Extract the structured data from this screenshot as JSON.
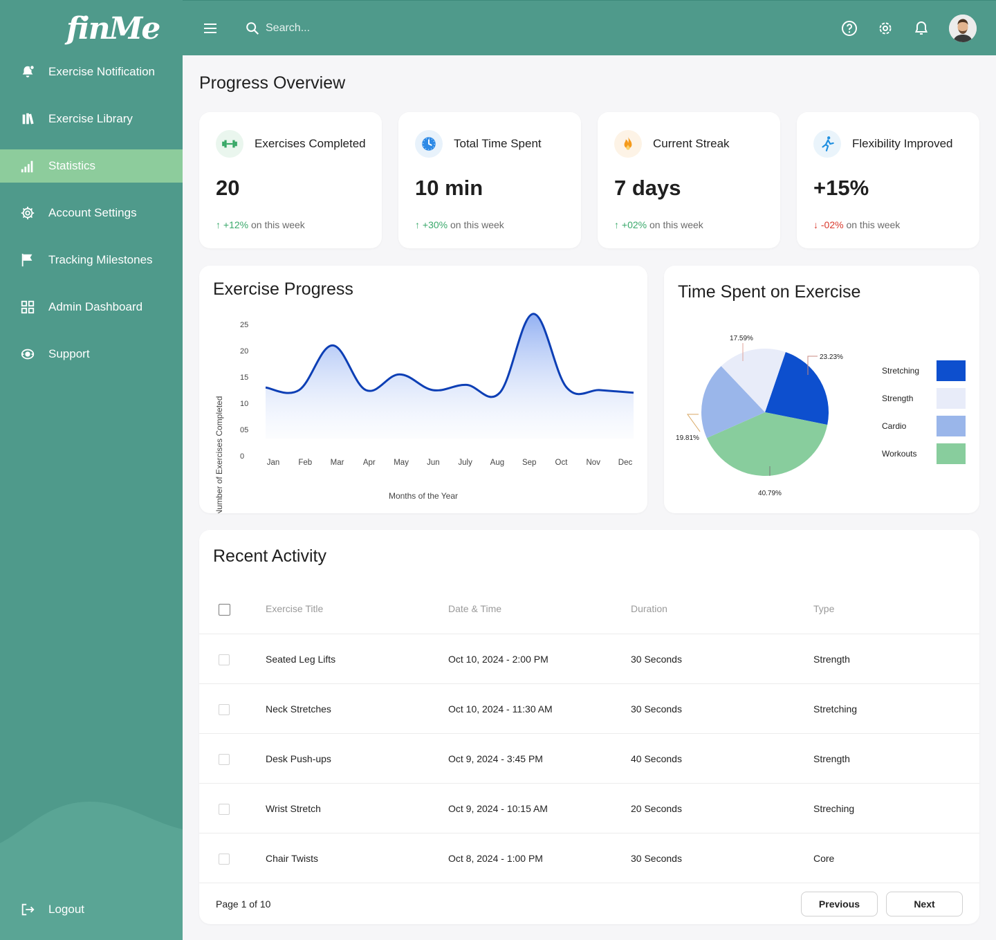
{
  "app": {
    "logo_text": "finMe"
  },
  "sidebar": {
    "items": [
      {
        "label": "Exercise Notification",
        "icon": "bell-alert-icon"
      },
      {
        "label": "Exercise Library",
        "icon": "books-icon"
      },
      {
        "label": "Statistics",
        "icon": "bar-chart-icon",
        "active": true
      },
      {
        "label": "Account Settings",
        "icon": "gear-icon"
      },
      {
        "label": "Tracking Milestones",
        "icon": "flag-icon"
      },
      {
        "label": "Admin Dashboard",
        "icon": "grid-icon"
      },
      {
        "label": "Support",
        "icon": "support-icon"
      }
    ],
    "logout": {
      "label": "Logout",
      "icon": "logout-icon"
    }
  },
  "header": {
    "search": {
      "placeholder": "Search..."
    },
    "icons": [
      "help-icon",
      "gear-icon",
      "bell-icon",
      "avatar"
    ]
  },
  "main": {
    "title": "Progress Overview",
    "stats": [
      {
        "title": "Exercises Completed",
        "value": "20",
        "change": "+12%",
        "direction": "up",
        "suffix": "on this week",
        "icon": "dumbbell-icon",
        "icon_bg": "#eaf6ee"
      },
      {
        "title": "Total Time Spent",
        "value": "10 min",
        "change": "+30%",
        "direction": "up",
        "suffix": "on this week",
        "icon": "clock-icon",
        "icon_bg": "#e8f2fb"
      },
      {
        "title": "Current Streak",
        "value": "7 days",
        "change": "+02%",
        "direction": "up",
        "suffix": "on this week",
        "icon": "flame-icon",
        "icon_bg": "#fdf3e6"
      },
      {
        "title": "Flexibility Improved",
        "value": "+15%",
        "change": "-02%",
        "direction": "down",
        "suffix": "on this week",
        "icon": "stretching-figure-icon",
        "icon_bg": "#eaf4fb"
      }
    ]
  },
  "chart_data": [
    {
      "type": "area",
      "title": "Exercise Progress",
      "xlabel": "Months of the Year",
      "ylabel": "Number of Exercises Completed",
      "categories": [
        "Jan",
        "Feb",
        "Mar",
        "Apr",
        "May",
        "Jun",
        "July",
        "Aug",
        "Sep",
        "Oct",
        "Nov",
        "Dec"
      ],
      "values": [
        13,
        12.5,
        21,
        12.5,
        15.5,
        12.5,
        13.5,
        12,
        27,
        13,
        12.5,
        12
      ],
      "yticks": [
        "25",
        "20",
        "15",
        "10",
        "05",
        "0"
      ],
      "ylim": [
        0,
        25
      ],
      "grid": false,
      "colors": {
        "line": "#0d3fb5",
        "fill": "#a9c0f5"
      }
    },
    {
      "type": "pie",
      "title": "Time Spent on Exercise",
      "categories": [
        "Stretching",
        "Strength",
        "Cardio",
        "Workouts"
      ],
      "values": [
        23.23,
        17.59,
        19.81,
        40.79
      ],
      "labels": [
        "23.23%",
        "17.59%",
        "19.81%",
        "40.79%"
      ],
      "colors": [
        "#0d4fce",
        "#e8ecf9",
        "#9ab6ea",
        "#88cd9d"
      ],
      "legend": "right"
    }
  ],
  "activity": {
    "title": "Recent Activity",
    "columns": [
      "Exercise Title",
      "Date & Time",
      "Duration",
      "Type"
    ],
    "rows": [
      {
        "title": "Seated Leg Lifts",
        "datetime": "Oct 10, 2024 - 2:00 PM",
        "duration": "30 Seconds",
        "type": "Strength"
      },
      {
        "title": "Neck Stretches",
        "datetime": "Oct 10, 2024 - 11:30 AM",
        "duration": "30 Seconds",
        "type": "Stretching"
      },
      {
        "title": "Desk Push-ups",
        "datetime": "Oct 9, 2024 - 3:45 PM",
        "duration": "40 Seconds",
        "type": "Strength"
      },
      {
        "title": "Wrist Stretch",
        "datetime": "Oct 9, 2024 - 10:15 AM",
        "duration": "20 Seconds",
        "type": "Streching"
      },
      {
        "title": "Chair Twists",
        "datetime": "Oct 8, 2024 - 1:00 PM",
        "duration": "30 Seconds",
        "type": "Core"
      }
    ],
    "pagination": {
      "info": "Page 1 of 10",
      "previous": "Previous",
      "next": "Next"
    }
  }
}
